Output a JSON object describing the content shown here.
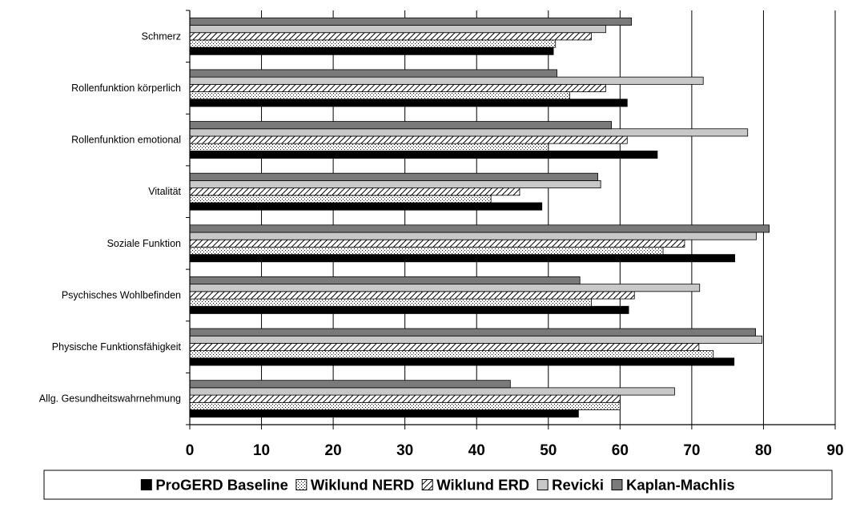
{
  "chart_data": {
    "type": "bar",
    "orientation": "horizontal",
    "title": "",
    "xlabel": "",
    "ylabel": "",
    "xlim": [
      0,
      90
    ],
    "x_ticks": [
      0,
      10,
      20,
      30,
      40,
      50,
      60,
      70,
      80,
      90
    ],
    "grid": "vertical",
    "legend_position": "bottom",
    "categories": [
      "Schmerz",
      "Rollenfunktion körperlich",
      "Rollenfunktion emotional",
      "Vitalität",
      "Soziale Funktion",
      "Psychisches Wohlbefinden",
      "Physische Funktionsfähigkeit",
      "Allg. Gesundheitswahrnehmung"
    ],
    "series": [
      {
        "name": "ProGERD Baseline",
        "color": "#000000",
        "pattern": "solid",
        "values": [
          50.7,
          61.0,
          65.2,
          49.1,
          76.0,
          61.2,
          75.9,
          54.2
        ]
      },
      {
        "name": "Wiklund NERD",
        "color": "#ffffff",
        "pattern": "dots",
        "values": [
          51.0,
          53.0,
          50.0,
          42.0,
          66.0,
          56.0,
          73.0,
          60.0
        ]
      },
      {
        "name": "Wiklund ERD",
        "color": "#ffffff",
        "pattern": "diagonal",
        "values": [
          56.0,
          58.0,
          61.0,
          46.0,
          69.0,
          62.0,
          71.0,
          60.0
        ]
      },
      {
        "name": "Revicki",
        "color": "#c8c8c8",
        "pattern": "solid",
        "values": [
          58.0,
          71.6,
          77.8,
          57.3,
          79.0,
          71.1,
          79.8,
          67.6
        ]
      },
      {
        "name": "Kaplan-Machlis",
        "color": "#7a7a7a",
        "pattern": "solid",
        "values": [
          61.6,
          51.2,
          58.8,
          56.9,
          80.8,
          54.4,
          78.9,
          44.7
        ]
      }
    ]
  }
}
